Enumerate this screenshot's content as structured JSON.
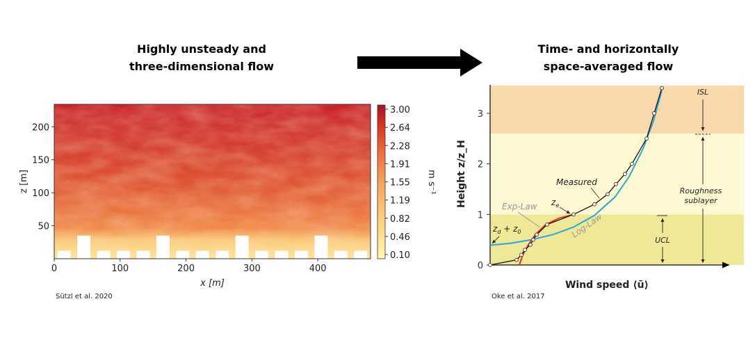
{
  "left_title": [
    "Highly unsteady and",
    "three-dimensional flow"
  ],
  "right_title": [
    "Time- and horizontally",
    "space-averaged flow"
  ],
  "left_citation": "Sützl et al. 2020",
  "right_citation": "Oke et al. 2017",
  "chart_data": [
    {
      "type": "heatmap",
      "xlabel": "x [m]",
      "ylabel": "z [m]",
      "xlim": [
        0,
        480
      ],
      "ylim": [
        0,
        234
      ],
      "xticks": [
        "0",
        "100",
        "200",
        "300",
        "400"
      ],
      "yticks": [
        "50",
        "100",
        "150",
        "200"
      ],
      "colorbar": {
        "label": "m s⁻¹",
        "ticks": [
          "3.00",
          "2.64",
          "2.28",
          "1.91",
          "1.55",
          "1.19",
          "0.82",
          "0.46",
          "0.10"
        ],
        "colors": [
          "#fff7b0",
          "#fdd17f",
          "#f7a25a",
          "#ee6b3b",
          "#d7301f",
          "#b9111e"
        ]
      },
      "buildings": [
        [
          5,
          25,
          12
        ],
        [
          35,
          55,
          35
        ],
        [
          65,
          85,
          12
        ],
        [
          95,
          115,
          12
        ],
        [
          125,
          145,
          12
        ],
        [
          155,
          175,
          35
        ],
        [
          185,
          205,
          12
        ],
        [
          215,
          235,
          12
        ],
        [
          245,
          265,
          12
        ],
        [
          275,
          295,
          35
        ],
        [
          305,
          325,
          12
        ],
        [
          335,
          355,
          12
        ],
        [
          365,
          385,
          12
        ],
        [
          395,
          415,
          35
        ],
        [
          425,
          445,
          12
        ],
        [
          455,
          475,
          12
        ]
      ]
    },
    {
      "type": "line",
      "xlabel": "Wind speed ⟨ū⟩",
      "ylabel": "Height z/z_H",
      "ylim": [
        0,
        3.55
      ],
      "xlim": [
        0,
        3.6
      ],
      "yticks": [
        "0",
        "1",
        "2",
        "3"
      ],
      "layers": [
        {
          "name": "UCL",
          "from": 0,
          "to": 1,
          "color": "#efe897"
        },
        {
          "name": "Roughness sublayer",
          "from": 1,
          "to": 2.6,
          "color": "#fdf7d2"
        },
        {
          "name": "ISL",
          "from": 2.6,
          "to": 3.55,
          "color": "#f9d9ab"
        }
      ],
      "annotations": {
        "measured": "Measured",
        "exp": "Exp-Law",
        "log": "Log-Law",
        "ze": "z",
        "ze_sub": "e",
        "zd": "z",
        "zd_sub": "d",
        "plus": " + z",
        "z0_sub": "0",
        "isl": "ISL",
        "rsl1": "Roughness",
        "rsl2": "sublayer",
        "ucl": "UCL"
      },
      "series": [
        {
          "name": "Measured",
          "color": "#111111",
          "points": [
            [
              0,
              0
            ],
            [
              0.38,
              0.1
            ],
            [
              0.45,
              0.2
            ],
            [
              0.5,
              0.3
            ],
            [
              0.58,
              0.4
            ],
            [
              0.62,
              0.5
            ],
            [
              0.67,
              0.6
            ],
            [
              0.82,
              0.8
            ],
            [
              1.2,
              1.0
            ],
            [
              1.5,
              1.2
            ],
            [
              1.69,
              1.4
            ],
            [
              1.81,
              1.6
            ],
            [
              1.94,
              1.8
            ],
            [
              2.04,
              2.0
            ],
            [
              2.25,
              2.5
            ],
            [
              2.36,
              3.0
            ],
            [
              2.47,
              3.5
            ]
          ]
        },
        {
          "name": "Log-Law",
          "color": "#2aa7d8",
          "points": [
            [
              0,
              0.39
            ],
            [
              0.3,
              0.43
            ],
            [
              0.6,
              0.5
            ],
            [
              0.9,
              0.6
            ],
            [
              1.2,
              0.75
            ],
            [
              1.5,
              0.98
            ],
            [
              1.8,
              1.35
            ],
            [
              2.0,
              1.75
            ],
            [
              2.2,
              2.3
            ],
            [
              2.35,
              2.85
            ],
            [
              2.47,
              3.45
            ]
          ]
        },
        {
          "name": "Exp-Law",
          "color": "#e8321e",
          "points": [
            [
              0.42,
              0
            ],
            [
              0.47,
              0.2
            ],
            [
              0.55,
              0.4
            ],
            [
              0.65,
              0.6
            ],
            [
              0.8,
              0.8
            ],
            [
              1.0,
              0.93
            ],
            [
              1.2,
              1.0
            ]
          ]
        }
      ]
    }
  ]
}
